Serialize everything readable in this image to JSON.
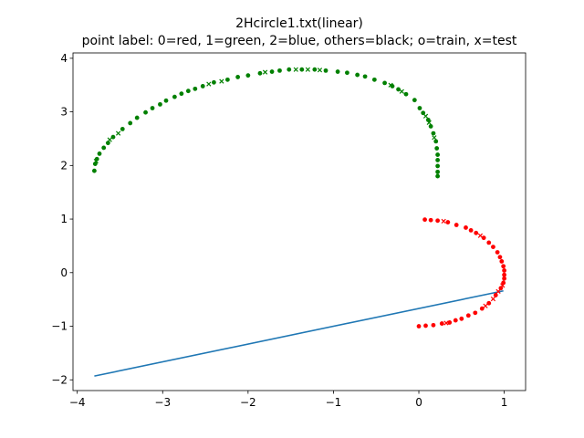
{
  "chart_data": {
    "type": "scatter",
    "title": "2Hcircle1.txt(linear)",
    "subtitle": "point label: 0=red, 1=green, 2=blue, others=black; o=train, x=test",
    "xlabel": "",
    "ylabel": "",
    "xlim": [
      -4.05,
      1.25
    ],
    "ylim": [
      -2.2,
      4.1
    ],
    "xticks": [
      -4,
      -3,
      -2,
      -1,
      0,
      1
    ],
    "yticks": [
      -2,
      -1,
      0,
      1,
      2,
      3,
      4
    ],
    "xtick_labels": [
      "−4",
      "−3",
      "−2",
      "−1",
      "0",
      "1"
    ],
    "ytick_labels": [
      "−2",
      "−1",
      "0",
      "1",
      "2",
      "3",
      "4"
    ],
    "grid": false,
    "series": [
      {
        "label": 1,
        "color": "#008000",
        "train": [
          [
            -3.8,
            1.9
          ],
          [
            -3.79,
            2.03
          ],
          [
            -3.77,
            2.12
          ],
          [
            -3.74,
            2.22
          ],
          [
            -3.69,
            2.33
          ],
          [
            -3.64,
            2.42
          ],
          [
            -3.58,
            2.53
          ],
          [
            -3.47,
            2.68
          ],
          [
            -3.38,
            2.79
          ],
          [
            -3.3,
            2.89
          ],
          [
            -3.2,
            2.99
          ],
          [
            -3.12,
            3.07
          ],
          [
            -3.03,
            3.14
          ],
          [
            -2.96,
            3.21
          ],
          [
            -2.86,
            3.28
          ],
          [
            -2.78,
            3.34
          ],
          [
            -2.7,
            3.39
          ],
          [
            -2.62,
            3.43
          ],
          [
            -2.53,
            3.48
          ],
          [
            -2.4,
            3.55
          ],
          [
            -2.24,
            3.6
          ],
          [
            -2.12,
            3.65
          ],
          [
            -2.0,
            3.68
          ],
          [
            -1.86,
            3.72
          ],
          [
            -1.72,
            3.75
          ],
          [
            -1.63,
            3.77
          ],
          [
            -1.52,
            3.79
          ],
          [
            -1.37,
            3.79
          ],
          [
            -1.22,
            3.79
          ],
          [
            -1.09,
            3.77
          ],
          [
            -0.95,
            3.75
          ],
          [
            -0.84,
            3.73
          ],
          [
            -0.72,
            3.69
          ],
          [
            -0.63,
            3.66
          ],
          [
            -0.52,
            3.6
          ],
          [
            -0.4,
            3.54
          ],
          [
            -0.31,
            3.48
          ],
          [
            -0.24,
            3.42
          ],
          [
            -0.15,
            3.33
          ],
          [
            -0.05,
            3.22
          ],
          [
            0.01,
            3.07
          ],
          [
            0.05,
            2.98
          ],
          [
            0.11,
            2.85
          ],
          [
            0.14,
            2.73
          ],
          [
            0.17,
            2.6
          ],
          [
            0.2,
            2.45
          ],
          [
            0.21,
            2.32
          ],
          [
            0.22,
            2.2
          ],
          [
            0.22,
            2.1
          ],
          [
            0.22,
            1.99
          ],
          [
            0.22,
            1.88
          ],
          [
            0.22,
            1.8
          ]
        ],
        "test": [
          [
            -3.78,
            2.08
          ],
          [
            -3.62,
            2.48
          ],
          [
            -3.52,
            2.6
          ],
          [
            -2.46,
            3.52
          ],
          [
            -2.31,
            3.57
          ],
          [
            -1.8,
            3.74
          ],
          [
            -1.44,
            3.79
          ],
          [
            -1.3,
            3.79
          ],
          [
            -1.16,
            3.78
          ],
          [
            -0.33,
            3.5
          ],
          [
            -0.2,
            3.38
          ],
          [
            0.08,
            2.92
          ],
          [
            0.12,
            2.8
          ],
          [
            0.18,
            2.52
          ]
        ]
      },
      {
        "label": 0,
        "color": "#ff0000",
        "train": [
          [
            0.07,
            0.99
          ],
          [
            0.14,
            0.98
          ],
          [
            0.22,
            0.97
          ],
          [
            0.34,
            0.94
          ],
          [
            0.44,
            0.89
          ],
          [
            0.55,
            0.84
          ],
          [
            0.61,
            0.79
          ],
          [
            0.67,
            0.74
          ],
          [
            0.76,
            0.65
          ],
          [
            0.82,
            0.56
          ],
          [
            0.87,
            0.48
          ],
          [
            0.92,
            0.38
          ],
          [
            0.95,
            0.29
          ],
          [
            0.97,
            0.21
          ],
          [
            0.99,
            0.12
          ],
          [
            1.0,
            0.04
          ],
          [
            1.0,
            -0.04
          ],
          [
            1.0,
            -0.11
          ],
          [
            0.99,
            -0.19
          ],
          [
            0.96,
            -0.29
          ],
          [
            0.9,
            -0.42
          ],
          [
            0.82,
            -0.57
          ],
          [
            0.74,
            -0.67
          ],
          [
            0.66,
            -0.75
          ],
          [
            0.58,
            -0.8
          ],
          [
            0.5,
            -0.86
          ],
          [
            0.43,
            -0.89
          ],
          [
            0.36,
            -0.93
          ],
          [
            0.27,
            -0.95
          ],
          [
            0.17,
            -0.98
          ],
          [
            0.08,
            -0.99
          ],
          [
            0.0,
            -1.0
          ]
        ],
        "test": [
          [
            0.29,
            0.96
          ],
          [
            0.72,
            0.69
          ],
          [
            0.98,
            -0.24
          ],
          [
            0.93,
            -0.35
          ],
          [
            0.87,
            -0.49
          ],
          [
            0.78,
            -0.62
          ],
          [
            0.32,
            -0.94
          ]
        ]
      }
    ],
    "line": {
      "color": "#1f77b4",
      "x": [
        -3.8,
        0.99
      ],
      "y": [
        -1.93,
        -0.34
      ]
    }
  }
}
